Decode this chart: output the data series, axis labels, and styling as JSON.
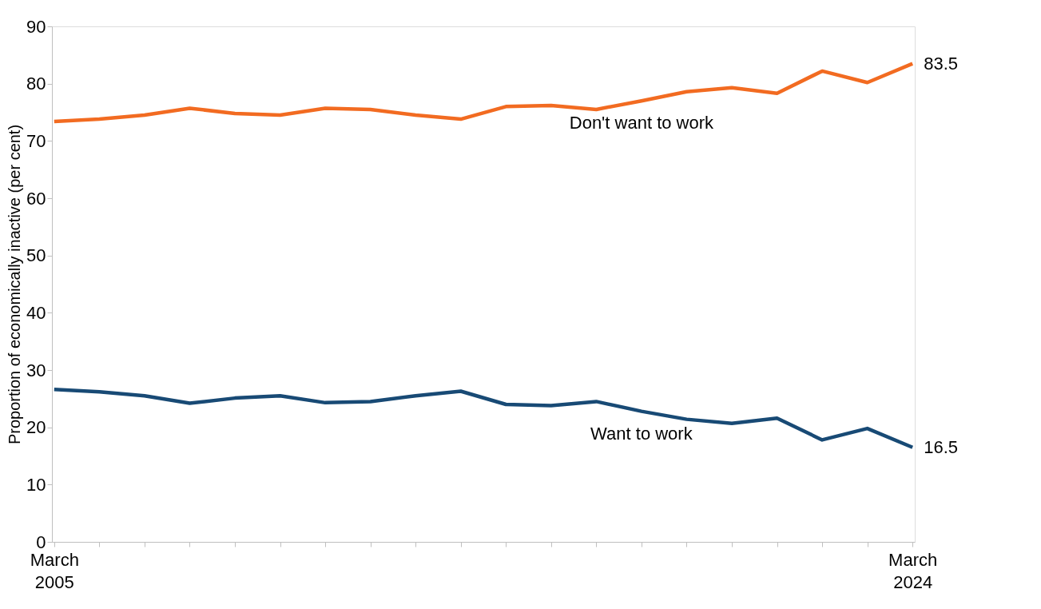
{
  "chart_data": {
    "type": "line",
    "ylabel": "Proportion of economically inactive (per cent)",
    "categories": [
      "March 2005",
      null,
      null,
      null,
      null,
      null,
      null,
      null,
      null,
      null,
      null,
      null,
      null,
      null,
      null,
      null,
      null,
      null,
      null,
      "March 2024"
    ],
    "series": [
      {
        "name": "Don't want to work",
        "color": "#f26b21",
        "values": [
          73.4,
          73.8,
          74.5,
          75.7,
          74.8,
          74.5,
          75.7,
          75.5,
          74.5,
          73.8,
          76.0,
          76.2,
          75.5,
          77.0,
          78.6,
          79.3,
          78.3,
          82.2,
          80.2,
          83.5
        ],
        "value_labels": [
          null,
          null,
          null,
          null,
          null,
          null,
          null,
          null,
          null,
          null,
          null,
          null,
          null,
          null,
          null,
          null,
          null,
          null,
          null,
          "83.5"
        ]
      },
      {
        "name": "Want to work",
        "color": "#184a75",
        "values": [
          26.6,
          26.2,
          25.5,
          24.2,
          25.1,
          25.5,
          24.3,
          24.5,
          25.5,
          26.3,
          24.0,
          23.8,
          24.5,
          22.8,
          21.4,
          20.7,
          21.6,
          17.8,
          19.8,
          16.5
        ],
        "value_labels": [
          null,
          null,
          null,
          null,
          null,
          null,
          null,
          null,
          null,
          null,
          null,
          null,
          null,
          null,
          null,
          null,
          null,
          null,
          null,
          "16.5"
        ]
      }
    ],
    "ylim": [
      0,
      90
    ],
    "yticks": [
      0,
      10,
      20,
      30,
      40,
      50,
      60,
      70,
      80,
      90
    ],
    "grid": false,
    "marker": "none",
    "line_style": "solid"
  }
}
